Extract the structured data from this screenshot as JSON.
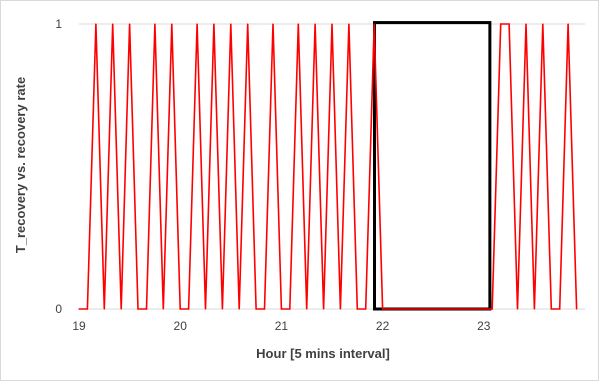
{
  "chart_data": {
    "type": "line",
    "title": "",
    "xlabel": "Hour [5 mins interval]",
    "ylabel": "T_recovery vs. recovery rate",
    "xlim": [
      19,
      24
    ],
    "ylim": [
      0,
      1
    ],
    "x_ticks": [
      "19",
      "20",
      "21",
      "22",
      "23"
    ],
    "y_ticks": [
      "0",
      "1"
    ],
    "grid": "horizontal",
    "colors": {
      "series": "#ff0000",
      "grid": "#d9d9d9",
      "highlight_box": "#000000"
    },
    "series": [
      {
        "x": [
          19.0,
          19.0833,
          19.1667,
          19.25,
          19.3333,
          19.4167,
          19.5,
          19.5833,
          19.6667,
          19.75,
          19.8333,
          19.9167,
          20.0,
          20.0833,
          20.1667,
          20.25,
          20.3333,
          20.4167,
          20.5,
          20.5833,
          20.6667,
          20.75,
          20.8333,
          20.9167,
          21.0,
          21.0833,
          21.1667,
          21.25,
          21.3333,
          21.4167,
          21.5,
          21.5833,
          21.6667,
          21.75,
          21.8333,
          21.9167,
          22.0,
          22.0833,
          22.1667,
          22.25,
          22.3333,
          22.4167,
          22.5,
          22.5833,
          22.6667,
          22.75,
          22.8333,
          22.9167,
          23.0,
          23.0833,
          23.1667,
          23.25,
          23.3333,
          23.4167,
          23.5,
          23.5833,
          23.6667,
          23.75,
          23.8333,
          23.9167
        ],
        "values": [
          0,
          0,
          1,
          0,
          1,
          0,
          1,
          0,
          0,
          1,
          0,
          1,
          0,
          0,
          1,
          0,
          1,
          0,
          1,
          0,
          1,
          0,
          0,
          1,
          0,
          0,
          1,
          0,
          1,
          0,
          1,
          0,
          1,
          0,
          0,
          1,
          0,
          0,
          0,
          0,
          0,
          0,
          0,
          0,
          0,
          0,
          0,
          0,
          0,
          0,
          1,
          1,
          0,
          1,
          0,
          1,
          0,
          0,
          1,
          0
        ]
      }
    ],
    "highlight": {
      "x_from": 21.92,
      "x_to": 23.06,
      "y_from": 0,
      "y_to": 1.005
    }
  }
}
